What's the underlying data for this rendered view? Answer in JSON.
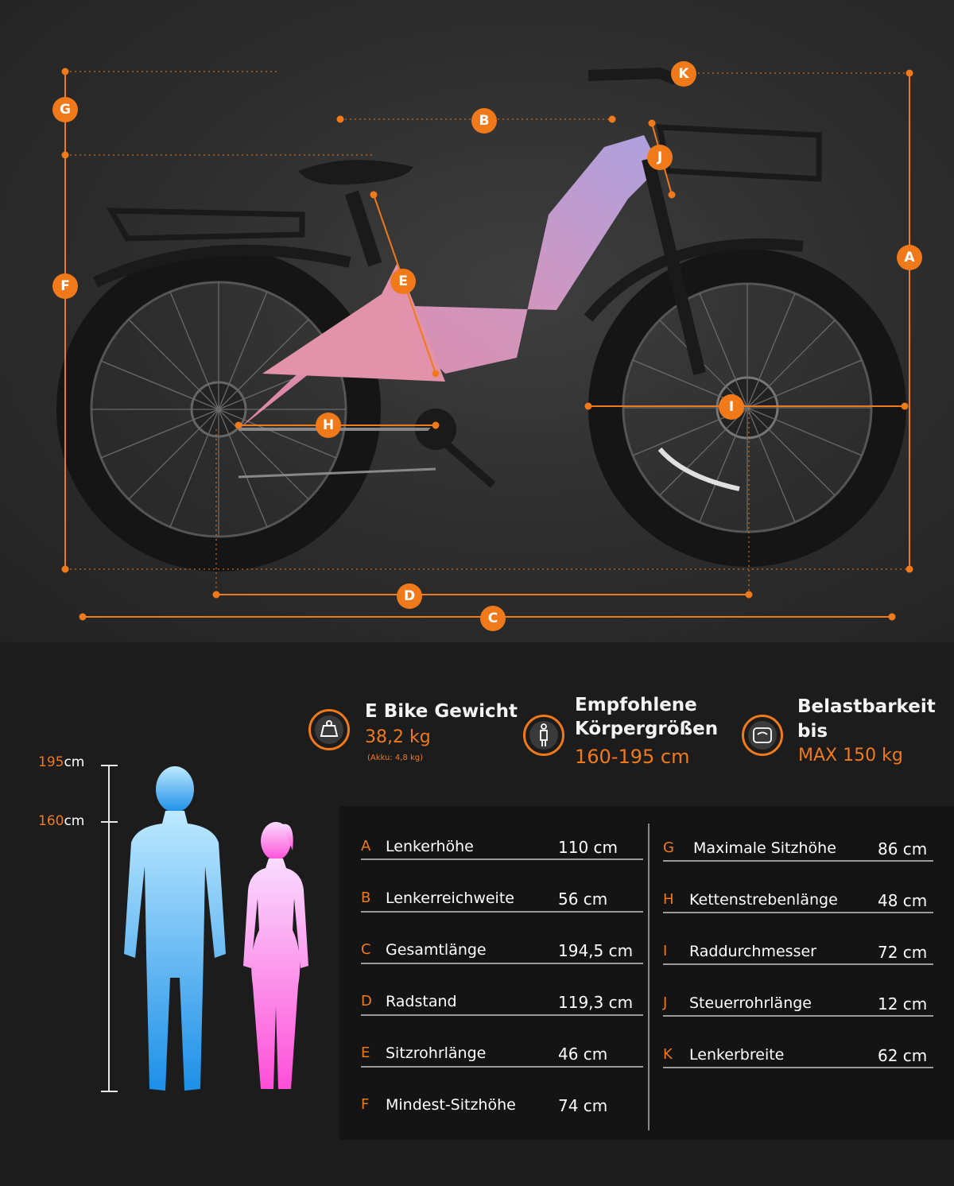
{
  "diagram": {
    "badges": [
      "A",
      "B",
      "C",
      "D",
      "E",
      "F",
      "G",
      "H",
      "I",
      "J",
      "K"
    ]
  },
  "stats": [
    {
      "title": "E Bike Gewicht",
      "value": "38,2 kg",
      "note": "(Akku: 4,8 kg)",
      "icon": "weight-icon"
    },
    {
      "title_line1": "Empfohlene",
      "title_line2": "Körpergrößen",
      "value": "160-195 cm",
      "icon": "person-icon"
    },
    {
      "title_line1": "Belastbarkeit",
      "title_line2": "bis",
      "value": "MAX 150 kg",
      "icon": "scale-icon"
    }
  ],
  "height_scale": {
    "top": {
      "num": "195",
      "unit": "cm"
    },
    "mid": {
      "num": "160",
      "unit": "cm"
    }
  },
  "colors": {
    "accent": "#f07a1a",
    "male_gradient": [
      "#bde9ff",
      "#1d8fe8"
    ],
    "female_gradient": [
      "#f9dcff",
      "#ff4fd8"
    ]
  },
  "specs_left": [
    {
      "letter": "A",
      "label": "Lenkerhöhe",
      "value": "110 cm"
    },
    {
      "letter": "B",
      "label": "Lenkerreichweite",
      "value": "56 cm"
    },
    {
      "letter": "C",
      "label": "Gesamtlänge",
      "value": "194,5 cm"
    },
    {
      "letter": "D",
      "label": "Radstand",
      "value": "119,3 cm"
    },
    {
      "letter": "E",
      "label": "Sitzrohrlänge",
      "value": "46 cm"
    },
    {
      "letter": "F",
      "label": "Mindest-Sitzhöhe",
      "value": "74 cm"
    }
  ],
  "specs_right": [
    {
      "letter": "G",
      "label": "Maximale Sitzhöhe",
      "value": "86 cm"
    },
    {
      "letter": "H",
      "label": "Kettenstrebenlänge",
      "value": "48 cm"
    },
    {
      "letter": "I",
      "label": "Raddurchmesser",
      "value": "72 cm"
    },
    {
      "letter": "J",
      "label": "Steuerrohrlänge",
      "value": "12 cm"
    },
    {
      "letter": "K",
      "label": "Lenkerbreite",
      "value": "62 cm"
    }
  ]
}
